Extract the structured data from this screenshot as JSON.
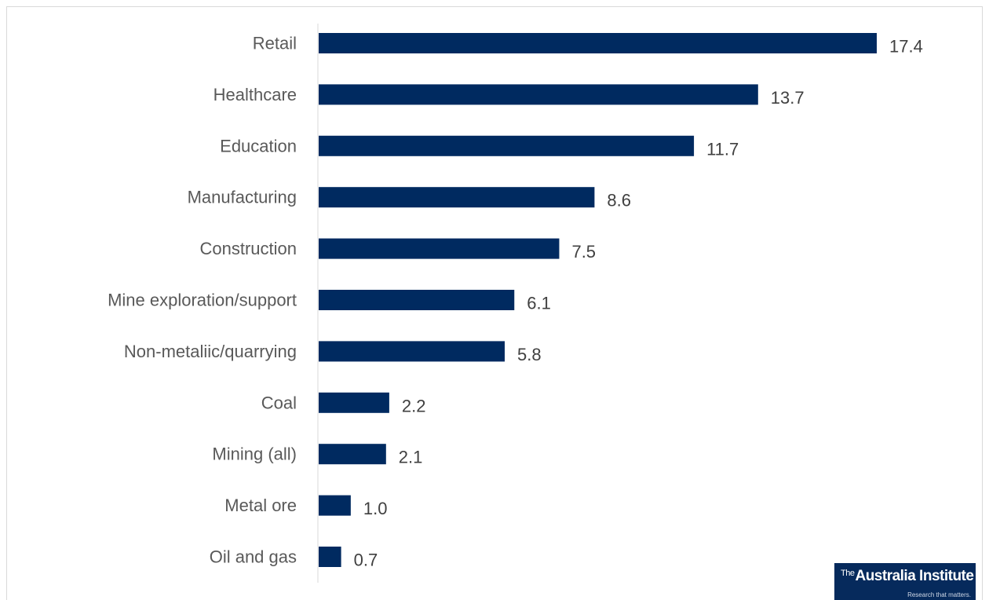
{
  "chart_data": {
    "type": "bar",
    "orientation": "horizontal",
    "categories": [
      "Retail",
      "Healthcare",
      "Education",
      "Manufacturing",
      "Construction",
      "Mine exploration/support",
      "Non-metaliic/quarrying",
      "Coal",
      "Mining (all)",
      "Metal ore",
      "Oil and gas"
    ],
    "values": [
      17.4,
      13.7,
      11.7,
      8.6,
      7.5,
      6.1,
      5.8,
      2.2,
      2.1,
      1.0,
      0.7
    ],
    "value_labels": [
      "17.4",
      "13.7",
      "11.7",
      "8.6",
      "7.5",
      "6.1",
      "5.8",
      "2.2",
      "2.1",
      "1.0",
      "0.7"
    ],
    "xlim": [
      0,
      17.4
    ],
    "grid": false,
    "bar_color": "#002a60",
    "title": "",
    "xlabel": "",
    "ylabel": ""
  },
  "logo": {
    "prefix": "The",
    "name": "Australia Institute",
    "tagline": "Research that matters."
  }
}
